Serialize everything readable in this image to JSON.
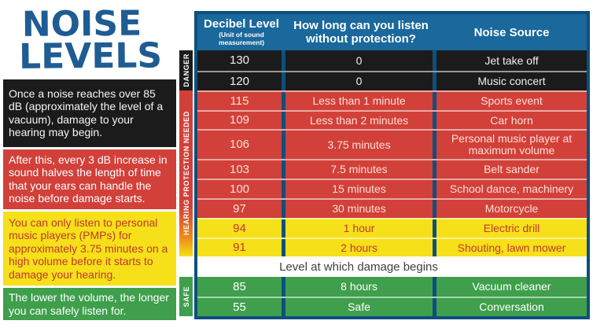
{
  "logo": {
    "line1": "NOISE",
    "line2": "LEVELS"
  },
  "sidebar": {
    "blocks": [
      {
        "name": "intro-note",
        "text": "Once a noise reaches over 85 dB (approximately the level of a vacuum), damage to your hearing may begin."
      },
      {
        "name": "increase-note",
        "text": "After this, every 3 dB increase in sound halves the length of time that your ears can handle the noise before damage starts."
      },
      {
        "name": "pmp-note",
        "text": "You can only listen to personal music players (PMPs) for approximately 3.75 minutes on a high volume before it starts to damage your hearing."
      },
      {
        "name": "volume-note",
        "text": "The lower the volume, the longer you can safely listen for."
      }
    ]
  },
  "strip": {
    "danger": "DANGER",
    "hearing": "HEARING PROTECTION NEEDED",
    "safe": "SAFE"
  },
  "chart_data": {
    "type": "table",
    "title": "Noise Levels",
    "columns": [
      "Decibel Level (Unit of sound measurement)",
      "How long can you listen without protection?",
      "Noise Source"
    ],
    "header": {
      "col1": "Decibel Level",
      "col1_sub": "(Unit of sound measurement)",
      "col2": "How long can you listen without protection?",
      "col3": "Noise Source"
    },
    "rows": [
      {
        "db": "130",
        "time": "0",
        "source": "Jet take off",
        "zone": "danger"
      },
      {
        "db": "120",
        "time": "0",
        "source": "Music concert",
        "zone": "danger"
      },
      {
        "db": "115",
        "time": "Less than 1 minute",
        "source": "Sports event",
        "zone": "hearing-protection-needed"
      },
      {
        "db": "109",
        "time": "Less than 2 minutes",
        "source": "Car horn",
        "zone": "hearing-protection-needed"
      },
      {
        "db": "106",
        "time": "3.75 minutes",
        "source": "Personal music player at maximum volume",
        "zone": "hearing-protection-needed"
      },
      {
        "db": "103",
        "time": "7.5 minutes",
        "source": "Belt sander",
        "zone": "hearing-protection-needed"
      },
      {
        "db": "100",
        "time": "15 minutes",
        "source": "School dance, machinery",
        "zone": "hearing-protection-needed"
      },
      {
        "db": "97",
        "time": "30 minutes",
        "source": "Motorcycle",
        "zone": "hearing-protection-needed"
      },
      {
        "db": "94",
        "time": "1 hour",
        "source": "Electric drill",
        "zone": "hearing-protection-needed"
      },
      {
        "db": "91",
        "time": "2 hours",
        "source": "Shouting, lawn mower",
        "zone": "hearing-protection-needed"
      },
      {
        "db": "85",
        "time": "8 hours",
        "source": "Vacuum cleaner",
        "zone": "safe"
      },
      {
        "db": "55",
        "time": "Safe",
        "source": "Conversation",
        "zone": "safe"
      }
    ],
    "damage_note": "Level at which damage begins"
  },
  "colors": {
    "header_blue": "#1a689c",
    "border_blue": "#0e4f7e",
    "danger_black": "#1b1b1b",
    "alert_red": "#d2403a",
    "warning_yellow": "#f6e019",
    "safe_green": "#3f9f4c",
    "logo_blue": "#1e5c92"
  }
}
